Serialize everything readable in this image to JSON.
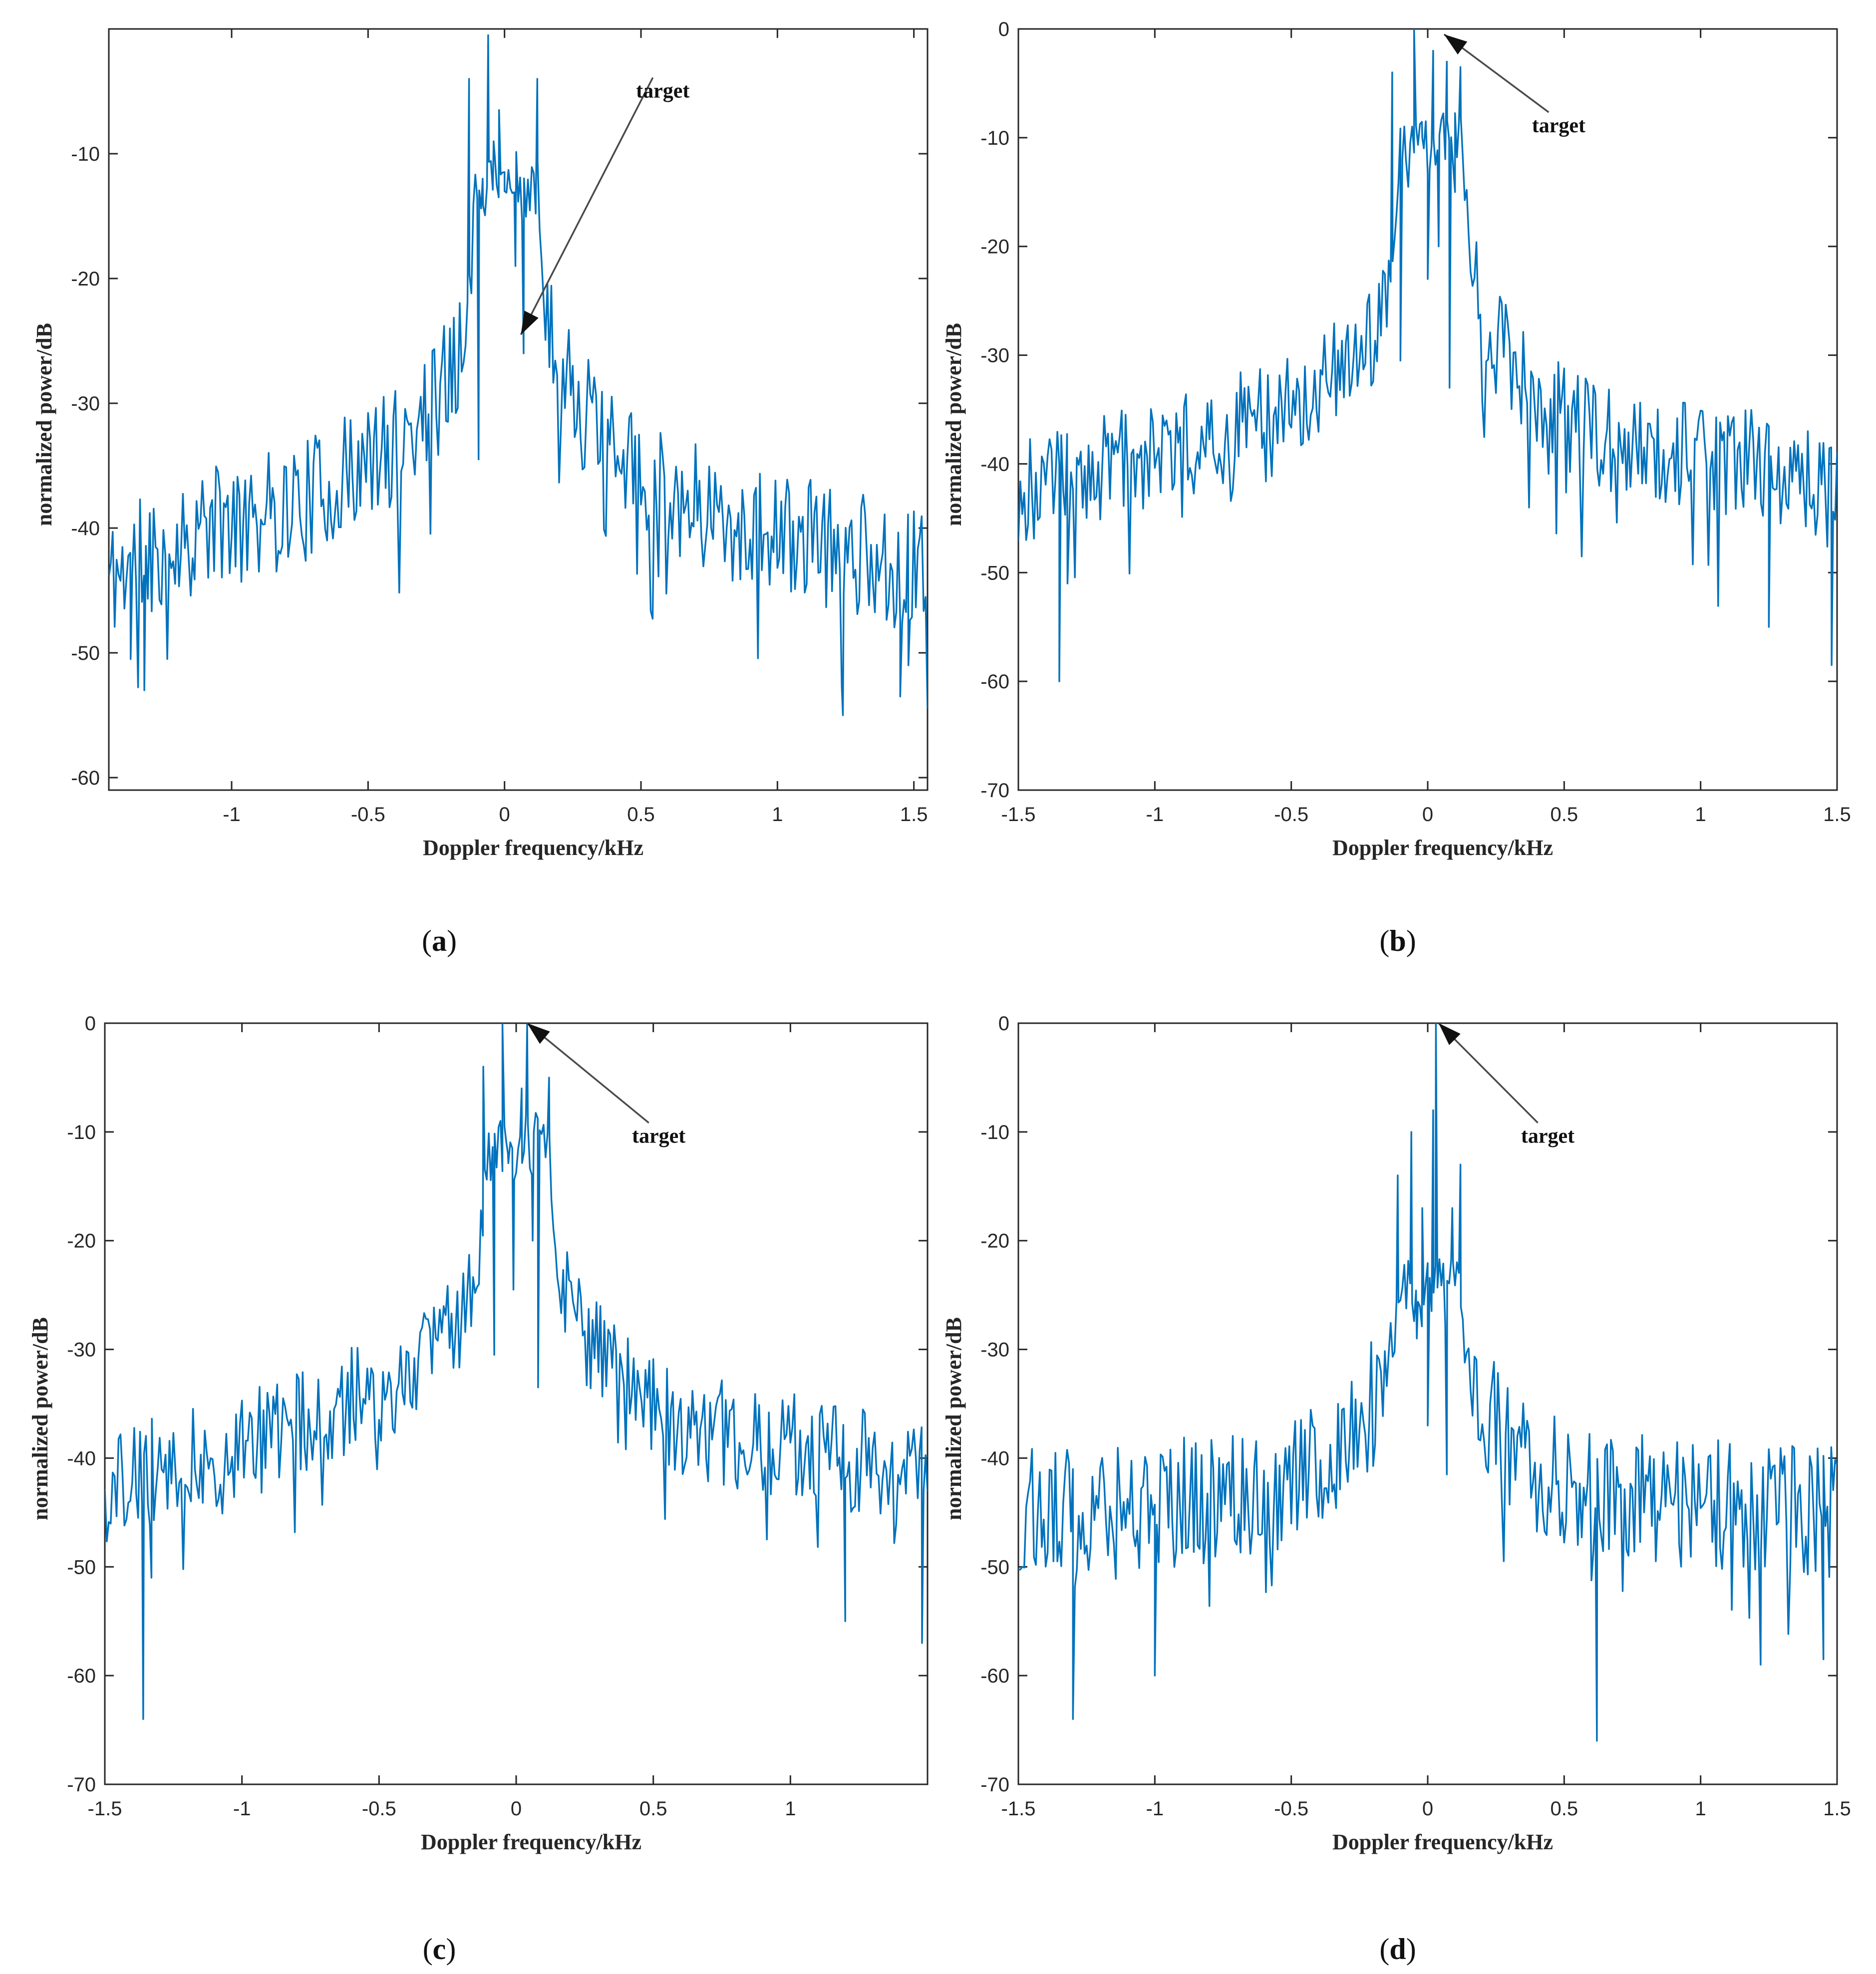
{
  "colors": {
    "series": "#0072bd",
    "axis": "#262626",
    "arrow": "#4a4a4a"
  },
  "chart_data": [
    {
      "panel": "a",
      "type": "line",
      "caption": "a",
      "title": "",
      "xlabel": "Doppler frequency/kHz",
      "ylabel": "normalized power/dB",
      "xlim": [
        -1.45,
        1.55
      ],
      "ylim": [
        -61,
        0
      ],
      "xticks": [
        -1,
        -0.5,
        0,
        0.5,
        1,
        1.5
      ],
      "xtick_labels": [
        "-1",
        "-0.5",
        "0",
        "0.5",
        "1",
        "1.5"
      ],
      "yticks": [
        -60,
        -50,
        -40,
        -30,
        -20,
        -10
      ],
      "ytick_labels": [
        "-60",
        "-50",
        "-40",
        "-30",
        "-20",
        "-10"
      ],
      "grid": false,
      "noise_seed": 11,
      "series": [
        {
          "name": "normalized power",
          "anchors": [
            [
              -1.45,
              -44
            ],
            [
              -1.3,
              -42
            ],
            [
              -1.1,
              -40
            ],
            [
              -0.9,
              -39
            ],
            [
              -0.7,
              -37.5
            ],
            [
              -0.5,
              -35
            ],
            [
              -0.4,
              -33.5
            ],
            [
              -0.3,
              -31
            ],
            [
              -0.25,
              -29.5
            ],
            [
              -0.2,
              -27.5
            ],
            [
              -0.15,
              -24
            ],
            [
              -0.12,
              -18
            ],
            [
              -0.1,
              -12
            ],
            [
              0.12,
              -13
            ],
            [
              0.15,
              -22
            ],
            [
              0.2,
              -27
            ],
            [
              0.3,
              -31
            ],
            [
              0.4,
              -34
            ],
            [
              0.5,
              -36
            ],
            [
              0.7,
              -38
            ],
            [
              0.9,
              -40
            ],
            [
              1.1,
              -41
            ],
            [
              1.3,
              -42
            ],
            [
              1.55,
              -44
            ]
          ],
          "noise_amplitude": 5,
          "peaks": [
            [
              -0.13,
              -4
            ],
            [
              -0.095,
              -34.5
            ],
            [
              -0.08,
              -12
            ],
            [
              -0.06,
              -0.5
            ],
            [
              -0.04,
              -9
            ],
            [
              -0.02,
              -6.5
            ],
            [
              0.0,
              -13
            ],
            [
              0.04,
              -19
            ],
            [
              0.07,
              -26
            ],
            [
              0.12,
              -4
            ]
          ],
          "dips": [
            [
              -1.32,
              -53
            ],
            [
              -1.37,
              -50.5
            ],
            [
              1.24,
              -55
            ],
            [
              1.45,
              -53.5
            ],
            [
              1.48,
              -51
            ]
          ]
        }
      ],
      "annotations": [
        {
          "text": "target",
          "x": 0.06,
          "y": -24.5,
          "text_x": 0.58,
          "text_y": -5.5
        }
      ]
    },
    {
      "panel": "b",
      "type": "line",
      "caption": "b",
      "title": "",
      "xlabel": "Doppler frequency/kHz",
      "ylabel": "normalized power/dB",
      "xlim": [
        -1.5,
        1.5
      ],
      "ylim": [
        -70,
        0
      ],
      "xticks": [
        -1.5,
        -1,
        -0.5,
        0,
        0.5,
        1,
        1.5
      ],
      "xtick_labels": [
        "-1.5",
        "-1",
        "-0.5",
        "0",
        "0.5",
        "1",
        "1.5"
      ],
      "yticks": [
        -70,
        -60,
        -50,
        -40,
        -30,
        -20,
        -10,
        0
      ],
      "ytick_labels": [
        "-70",
        "-60",
        "-50",
        "-40",
        "-30",
        "-20",
        "-10",
        "0"
      ],
      "grid": false,
      "noise_seed": 23,
      "series": [
        {
          "name": "normalized power",
          "anchors": [
            [
              -1.5,
              -43
            ],
            [
              -1.3,
              -41
            ],
            [
              -1.0,
              -39
            ],
            [
              -0.8,
              -37.5
            ],
            [
              -0.6,
              -35
            ],
            [
              -0.4,
              -33
            ],
            [
              -0.3,
              -31
            ],
            [
              -0.2,
              -28
            ],
            [
              -0.15,
              -24.5
            ],
            [
              -0.12,
              -18
            ],
            [
              -0.1,
              -12
            ],
            [
              0.12,
              -10
            ],
            [
              0.15,
              -20
            ],
            [
              0.2,
              -26
            ],
            [
              0.3,
              -31
            ],
            [
              0.4,
              -34
            ],
            [
              0.6,
              -37
            ],
            [
              0.8,
              -38.5
            ],
            [
              1.0,
              -39.5
            ],
            [
              1.2,
              -40
            ],
            [
              1.5,
              -43
            ]
          ],
          "noise_amplitude": 5,
          "peaks": [
            [
              -0.13,
              -4
            ],
            [
              -0.1,
              -30.5
            ],
            [
              -0.08,
              -12
            ],
            [
              -0.05,
              0
            ],
            [
              -0.02,
              -10
            ],
            [
              0.0,
              -23
            ],
            [
              0.02,
              -2
            ],
            [
              0.04,
              -20
            ],
            [
              0.07,
              -3
            ],
            [
              0.08,
              -33
            ],
            [
              0.1,
              -15
            ],
            [
              0.12,
              -3.5
            ]
          ],
          "dips": [
            [
              -1.35,
              -60
            ],
            [
              -1.32,
              -51
            ],
            [
              1.25,
              -55
            ],
            [
              1.48,
              -58.5
            ]
          ]
        }
      ],
      "annotations": [
        {
          "text": "target",
          "x": 0.06,
          "y": -0.5,
          "text_x": 0.48,
          "text_y": -9.5
        }
      ]
    },
    {
      "panel": "c",
      "type": "line",
      "caption": "c",
      "title": "",
      "xlabel": "Doppler frequency/kHz",
      "ylabel": "normalized power/dB",
      "xlim": [
        -1.5,
        1.5
      ],
      "ylim": [
        -70,
        0
      ],
      "xticks": [
        -1.5,
        -1,
        -0.5,
        0,
        0.5,
        1
      ],
      "xtick_labels": [
        "-1.5",
        "-1",
        "-0.5",
        "0",
        "0.5",
        "1"
      ],
      "yticks": [
        -70,
        -60,
        -50,
        -40,
        -30,
        -20,
        -10,
        0
      ],
      "ytick_labels": [
        "-70",
        "-60",
        "-50",
        "-40",
        "-30",
        "-20",
        "-10",
        "0"
      ],
      "grid": false,
      "noise_seed": 37,
      "series": [
        {
          "name": "normalized power",
          "anchors": [
            [
              -1.5,
              -43
            ],
            [
              -1.3,
              -41
            ],
            [
              -1.0,
              -39
            ],
            [
              -0.8,
              -37
            ],
            [
              -0.6,
              -34.5
            ],
            [
              -0.4,
              -32.5
            ],
            [
              -0.3,
              -30.5
            ],
            [
              -0.2,
              -27.5
            ],
            [
              -0.15,
              -24
            ],
            [
              -0.12,
              -18
            ],
            [
              -0.1,
              -12
            ],
            [
              0.12,
              -11
            ],
            [
              0.15,
              -21
            ],
            [
              0.2,
              -26
            ],
            [
              0.3,
              -30.5
            ],
            [
              0.4,
              -33.5
            ],
            [
              0.6,
              -36.5
            ],
            [
              0.8,
              -38
            ],
            [
              1.0,
              -39
            ],
            [
              1.2,
              -40
            ],
            [
              1.5,
              -42
            ]
          ],
          "noise_amplitude": 5,
          "peaks": [
            [
              -0.12,
              -4
            ],
            [
              -0.08,
              -30.5
            ],
            [
              -0.05,
              0
            ],
            [
              -0.03,
              -12
            ],
            [
              -0.01,
              -24.5
            ],
            [
              0.02,
              -6
            ],
            [
              0.04,
              0
            ],
            [
              0.06,
              -20
            ],
            [
              0.08,
              -33.5
            ],
            [
              0.12,
              -5
            ]
          ],
          "dips": [
            [
              -1.36,
              -64
            ],
            [
              -1.33,
              -51
            ],
            [
              1.2,
              -55
            ],
            [
              1.48,
              -57
            ]
          ]
        }
      ],
      "annotations": [
        {
          "text": "target",
          "x": 0.04,
          "y": 0,
          "text_x": 0.52,
          "text_y": -11
        }
      ]
    },
    {
      "panel": "d",
      "type": "line",
      "caption": "d",
      "title": "",
      "xlabel": "Doppler frequency/kHz",
      "ylabel": "normalized power/dB",
      "xlim": [
        -1.5,
        1.5
      ],
      "ylim": [
        -70,
        0
      ],
      "xticks": [
        -1.5,
        -1,
        -0.5,
        0,
        0.5,
        1,
        1.5
      ],
      "xtick_labels": [
        "-1.5",
        "-1",
        "-0.5",
        "0",
        "0.5",
        "1",
        "1.5"
      ],
      "yticks": [
        -70,
        -60,
        -50,
        -40,
        -30,
        -20,
        -10,
        0
      ],
      "ytick_labels": [
        "-70",
        "-60",
        "-50",
        "-40",
        "-30",
        "-20",
        "-10",
        "0"
      ],
      "grid": false,
      "noise_seed": 53,
      "series": [
        {
          "name": "normalized power",
          "anchors": [
            [
              -1.5,
              -45
            ],
            [
              -1.2,
              -44.5
            ],
            [
              -0.9,
              -44
            ],
            [
              -0.6,
              -43
            ],
            [
              -0.4,
              -41
            ],
            [
              -0.3,
              -39
            ],
            [
              -0.2,
              -35
            ],
            [
              -0.15,
              -31
            ],
            [
              -0.1,
              -25
            ],
            [
              0.1,
              -24
            ],
            [
              0.15,
              -31
            ],
            [
              0.2,
              -35
            ],
            [
              0.3,
              -39
            ],
            [
              0.4,
              -41
            ],
            [
              0.6,
              -43
            ],
            [
              0.9,
              -44
            ],
            [
              1.2,
              -44.5
            ],
            [
              1.5,
              -45
            ]
          ],
          "noise_amplitude": 6,
          "peaks": [
            [
              -0.11,
              -14
            ],
            [
              -0.06,
              -10
            ],
            [
              -0.04,
              -29
            ],
            [
              -0.02,
              -17
            ],
            [
              0.0,
              -37
            ],
            [
              0.02,
              -8
            ],
            [
              0.03,
              0
            ],
            [
              0.05,
              -24
            ],
            [
              0.07,
              -41.5
            ],
            [
              0.09,
              -17
            ],
            [
              0.12,
              -13
            ]
          ],
          "dips": [
            [
              -1.3,
              -64
            ],
            [
              -1.0,
              -60
            ],
            [
              0.62,
              -66
            ],
            [
              1.22,
              -59
            ],
            [
              1.45,
              -58.5
            ]
          ]
        }
      ],
      "annotations": [
        {
          "text": "target",
          "x": 0.04,
          "y": 0,
          "text_x": 0.44,
          "text_y": -11
        }
      ]
    }
  ]
}
